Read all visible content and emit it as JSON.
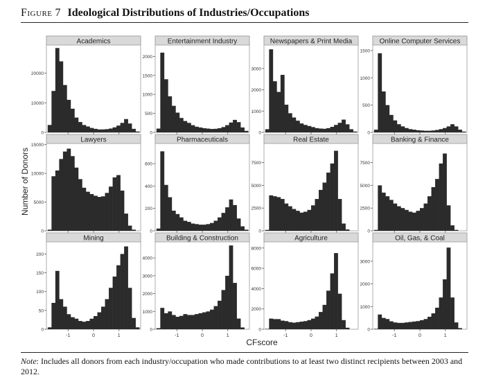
{
  "figure": {
    "label": "Figure",
    "number": "7",
    "title": "Ideological Distributions of Industries/Occupations",
    "note_label": "Note",
    "note_text": ": Includes all donors from each industry/occupation who made contributions to at least two distinct recipients between 2003 and 2012."
  },
  "chart_data": {
    "type": "bar",
    "layout": "facet grid 3 rows x 4 columns, histograms",
    "xlabel": "CFscore",
    "ylabel": "Number of Donors",
    "xlim": [
      -1.85,
      1.85
    ],
    "x_ticks": [
      "-1",
      "0",
      "1"
    ],
    "x_tick_values": [
      -1,
      0,
      1
    ],
    "bin_start": -1.8,
    "bin_width": 0.15,
    "colors": {
      "bar": "#2b2b2b",
      "strip": "#d9d9d9",
      "panel_bg": "#ffffff",
      "axis": "#555555"
    },
    "panels": [
      {
        "name": "Academics",
        "ylim": [
          0,
          29500
        ],
        "yticks": [
          0,
          10000,
          20000
        ],
        "values": [
          2500,
          14000,
          28500,
          24000,
          16000,
          11000,
          8000,
          5000,
          3500,
          2500,
          2000,
          1500,
          1200,
          1000,
          1000,
          1100,
          1300,
          1700,
          2300,
          3200,
          4500,
          3000,
          1200,
          300,
          0
        ]
      },
      {
        "name": "Entertainment Industry",
        "ylim": [
          0,
          2300
        ],
        "yticks": [
          0,
          500,
          1000,
          1500,
          2000
        ],
        "values": [
          100,
          2100,
          1400,
          950,
          700,
          520,
          380,
          300,
          250,
          190,
          150,
          130,
          110,
          100,
          90,
          95,
          110,
          140,
          190,
          260,
          330,
          270,
          130,
          40,
          0
        ]
      },
      {
        "name": "Newspapers & Print Media",
        "ylim": [
          0,
          4100
        ],
        "yticks": [
          0,
          1000,
          2000,
          3000
        ],
        "values": [
          150,
          3900,
          2400,
          1900,
          2700,
          1300,
          900,
          700,
          550,
          420,
          350,
          300,
          250,
          200,
          180,
          170,
          200,
          260,
          350,
          450,
          600,
          380,
          150,
          40,
          0
        ]
      },
      {
        "name": "Online Computer Services",
        "ylim": [
          0,
          1600
        ],
        "yticks": [
          0,
          500,
          1000,
          1500
        ],
        "values": [
          50,
          1450,
          750,
          500,
          320,
          220,
          150,
          110,
          80,
          60,
          50,
          40,
          35,
          30,
          30,
          35,
          45,
          60,
          80,
          110,
          150,
          110,
          50,
          15,
          0
        ]
      },
      {
        "name": "Lawyers",
        "ylim": [
          0,
          15200
        ],
        "yticks": [
          0,
          5000,
          10000,
          15000
        ],
        "values": [
          200,
          9500,
          10500,
          12500,
          13800,
          14300,
          13000,
          11000,
          9000,
          7500,
          6800,
          6400,
          6100,
          5900,
          6000,
          6600,
          7700,
          9300,
          9700,
          7000,
          3000,
          900,
          200,
          0,
          0
        ]
      },
      {
        "name": "Pharmaceuticals",
        "ylim": [
          0,
          780
        ],
        "yticks": [
          0,
          200,
          400,
          600
        ],
        "values": [
          20,
          710,
          410,
          300,
          180,
          150,
          120,
          90,
          80,
          65,
          60,
          55,
          55,
          60,
          70,
          90,
          120,
          160,
          210,
          280,
          230,
          110,
          40,
          10,
          0
        ]
      },
      {
        "name": "Real Estate",
        "ylim": [
          0,
          9600
        ],
        "yticks": [
          0,
          2500,
          5000,
          7500
        ],
        "values": [
          100,
          3900,
          3800,
          3700,
          3500,
          3000,
          2700,
          2400,
          2200,
          2000,
          2100,
          2300,
          2800,
          3500,
          4500,
          5300,
          6400,
          7400,
          8800,
          3500,
          800,
          150,
          0,
          0,
          0
        ]
      },
      {
        "name": "Banking & Finance",
        "ylim": [
          0,
          9600
        ],
        "yticks": [
          0,
          2500,
          5000,
          7500
        ],
        "values": [
          100,
          5000,
          4200,
          3800,
          3400,
          3000,
          2700,
          2500,
          2300,
          2100,
          2000,
          2200,
          2500,
          3000,
          3800,
          4800,
          5700,
          7400,
          8500,
          2800,
          600,
          100,
          0,
          0,
          0
        ]
      },
      {
        "name": "Mining",
        "ylim": [
          0,
          232
        ],
        "yticks": [
          0,
          50,
          100,
          150,
          200
        ],
        "values": [
          5,
          70,
          155,
          80,
          60,
          40,
          32,
          28,
          22,
          20,
          22,
          28,
          35,
          45,
          60,
          80,
          110,
          140,
          170,
          200,
          220,
          110,
          30,
          5,
          0
        ]
      },
      {
        "name": "Building & Construction",
        "ylim": [
          0,
          4900
        ],
        "yticks": [
          0,
          1000,
          2000,
          3000,
          4000
        ],
        "values": [
          60,
          1200,
          900,
          1000,
          800,
          700,
          750,
          850,
          800,
          800,
          850,
          900,
          950,
          1000,
          1100,
          1300,
          1600,
          2200,
          3000,
          4700,
          2600,
          600,
          100,
          0,
          0
        ]
      },
      {
        "name": "Agriculture",
        "ylim": [
          0,
          8600
        ],
        "yticks": [
          0,
          2000,
          4000,
          6000,
          8000
        ],
        "values": [
          40,
          1050,
          1000,
          1000,
          850,
          800,
          700,
          650,
          700,
          750,
          800,
          900,
          1050,
          1250,
          1700,
          2400,
          3800,
          5500,
          7500,
          3500,
          900,
          150,
          0,
          0,
          0
        ]
      },
      {
        "name": "Oil, Gas, & Coal",
        "ylim": [
          0,
          3850
        ],
        "yticks": [
          0,
          1000,
          2000,
          3000
        ],
        "values": [
          20,
          650,
          500,
          450,
          350,
          300,
          280,
          280,
          300,
          320,
          340,
          360,
          400,
          450,
          550,
          700,
          950,
          1400,
          2200,
          3600,
          1400,
          300,
          50,
          0,
          0
        ]
      }
    ]
  }
}
